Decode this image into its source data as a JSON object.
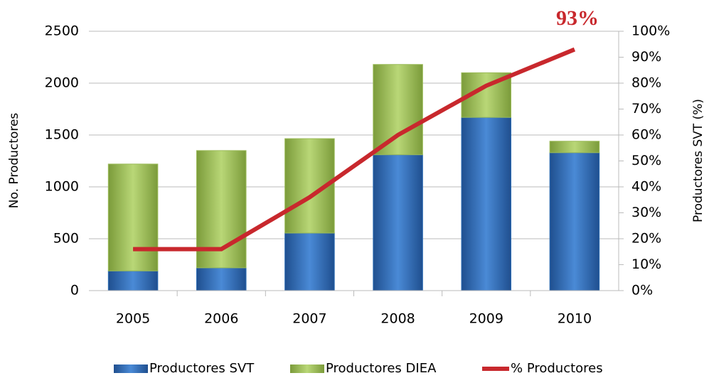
{
  "chart_data": {
    "type": "bar-line",
    "categories": [
      "2005",
      "2006",
      "2007",
      "2008",
      "2009",
      "2010"
    ],
    "series": [
      {
        "name": "Productores SVT",
        "type": "bar",
        "color": "#2e6db4",
        "values": [
          190,
          220,
          555,
          1310,
          1670,
          1330
        ]
      },
      {
        "name": "Productores DIEA",
        "type": "bar",
        "color": "#9bbb59",
        "values": [
          1030,
          1130,
          910,
          870,
          430,
          110
        ]
      },
      {
        "name": "% Productores",
        "type": "line",
        "axis": "y2",
        "color": "#c8282d",
        "values": [
          16,
          16,
          36,
          60,
          79,
          93
        ]
      }
    ],
    "ylabel": "No. Productores",
    "y2label": "Productores SVT (%)",
    "ylim": [
      0,
      2500
    ],
    "yticks": [
      0,
      500,
      1000,
      1500,
      2000,
      2500
    ],
    "y2lim": [
      0,
      100
    ],
    "y2ticks": [
      {
        "value": 0,
        "label": "0%"
      },
      {
        "value": 10,
        "label": "10%"
      },
      {
        "value": 20,
        "label": "20%"
      },
      {
        "value": 30,
        "label": "30%"
      },
      {
        "value": 40,
        "label": "40%"
      },
      {
        "value": 50,
        "label": "50%"
      },
      {
        "value": 60,
        "label": "60%"
      },
      {
        "value": 70,
        "label": "70%"
      },
      {
        "value": 80,
        "label": "80%"
      },
      {
        "value": 90,
        "label": "90%"
      },
      {
        "value": 100,
        "label": "100%"
      }
    ],
    "annotation": "93%",
    "grid": true,
    "legend": "bottom"
  }
}
